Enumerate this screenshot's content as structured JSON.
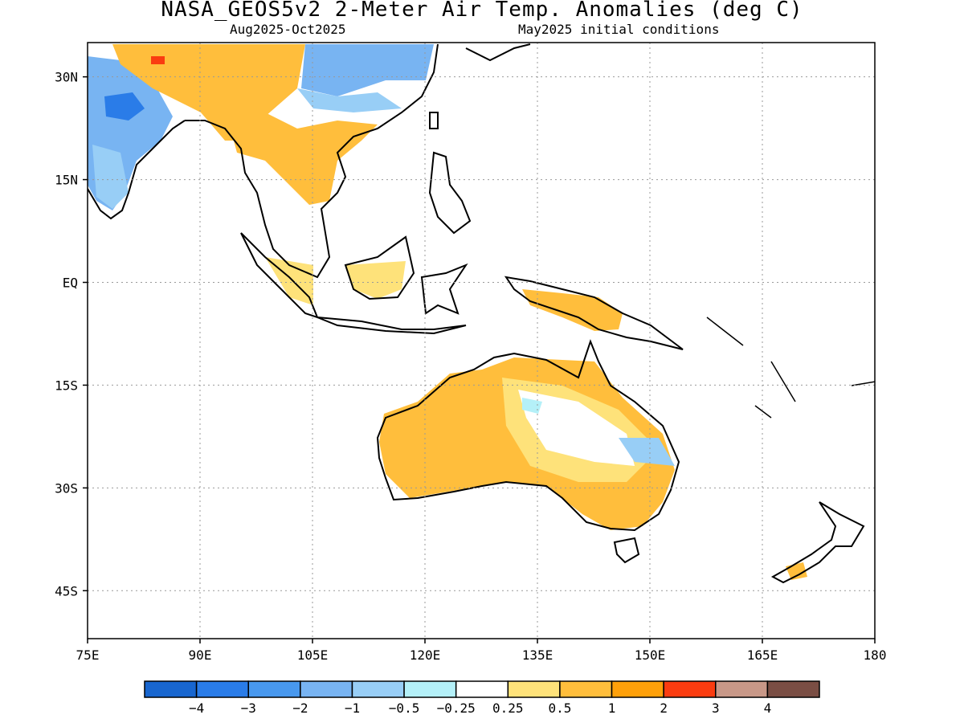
{
  "header": {
    "title": "NASA_GEOS5v2 2-Meter Air Temp. Anomalies (deg C)",
    "period": "Aug2025-Oct2025",
    "init": "May2025 initial conditions"
  },
  "map": {
    "lon_range": [
      75,
      180
    ],
    "lat_range": [
      -52,
      35
    ],
    "lon_ticks": [
      75,
      90,
      105,
      120,
      135,
      150,
      165,
      180
    ],
    "lon_labels": [
      "75E",
      "90E",
      "105E",
      "120E",
      "135E",
      "150E",
      "165E",
      "180"
    ],
    "lat_ticks": [
      30,
      15,
      0,
      -15,
      -30,
      -45
    ],
    "lat_labels": [
      "30N",
      "15N",
      "EQ",
      "15S",
      "30S",
      "45S"
    ],
    "grid": "dotted"
  },
  "colorbar": {
    "labels": [
      "-4",
      "-3",
      "-2",
      "-1",
      "-0.5",
      "-0.25",
      "0.25",
      "0.5",
      "1",
      "2",
      "3",
      "4"
    ],
    "colors": [
      "#1866cf",
      "#2a7ce8",
      "#4898ee",
      "#78b4f2",
      "#98cef6",
      "#b4f0f8",
      "#ffffff",
      "#fee27a",
      "#ffbe3c",
      "#fea00a",
      "#fa3c10",
      "#c89888",
      "#7a4e44"
    ]
  }
}
